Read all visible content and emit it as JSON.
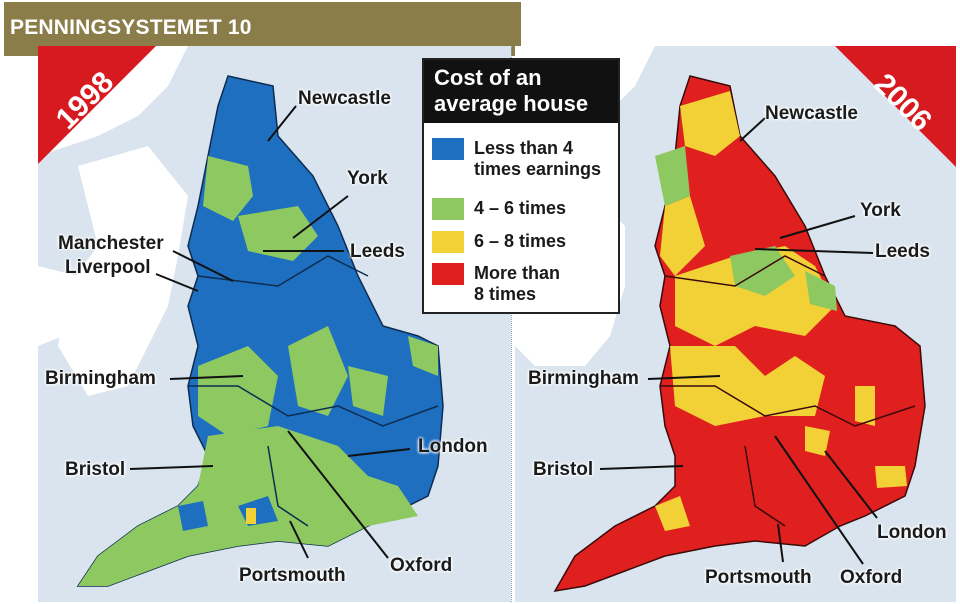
{
  "header": {
    "title": "PENNINGSYSTEMET 10"
  },
  "legend": {
    "title_line1": "Cost of an",
    "title_line2": "average house",
    "items": [
      {
        "label_line1": "Less than 4",
        "label_line2": "times earnings",
        "color": "#1e6fc0"
      },
      {
        "label_line1": "4 – 6 times",
        "label_line2": "",
        "color": "#8ec860"
      },
      {
        "label_line1": "6 – 8 times",
        "label_line2": "",
        "color": "#f2d137"
      },
      {
        "label_line1": "More than",
        "label_line2": "8 times",
        "color": "#e01f1f"
      }
    ]
  },
  "maps": [
    {
      "year": "1998",
      "cities": {
        "newcastle": "Newcastle",
        "york": "York",
        "leeds": "Leeds",
        "manchester": "Manchester",
        "liverpool": "Liverpool",
        "birmingham": "Birmingham",
        "bristol": "Bristol",
        "london": "London",
        "oxford": "Oxford",
        "portsmouth": "Portsmouth"
      }
    },
    {
      "year": "2006",
      "cities": {
        "newcastle": "Newcastle",
        "york": "York",
        "leeds": "Leeds",
        "birmingham": "Birmingham",
        "bristol": "Bristol",
        "london": "London",
        "oxford": "Oxford",
        "portsmouth": "Portsmouth"
      }
    }
  ],
  "colors": {
    "sea": "#d9e4ee",
    "land_other": "#ffffff",
    "banner": "#d71920",
    "header_bar": "#8a7d49"
  }
}
